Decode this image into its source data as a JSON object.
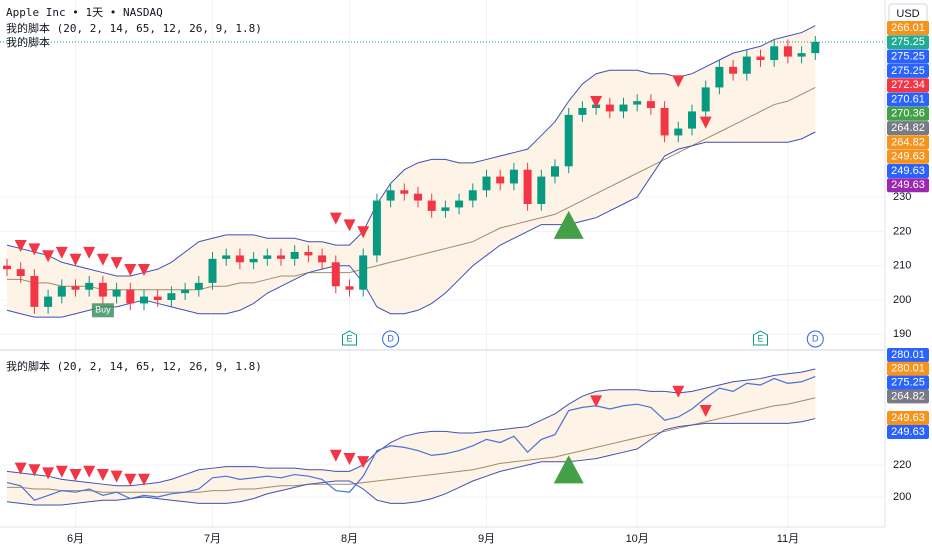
{
  "chart_data": [
    {
      "type": "candlestick",
      "title": "Apple Inc • 1天 • NASDAQ",
      "indicator": "我的脚本 (20, 2, 14, 65, 12, 26, 9, 1.8)",
      "indicator_short": "我的脚本",
      "currency": "USD",
      "categories": [
        null,
        null,
        null,
        null,
        null,
        "6月",
        null,
        null,
        null,
        null,
        null,
        null,
        null,
        null,
        null,
        "7月",
        null,
        null,
        null,
        null,
        null,
        null,
        null,
        null,
        null,
        "8月",
        null,
        null,
        null,
        null,
        null,
        null,
        null,
        null,
        null,
        "9月",
        null,
        null,
        null,
        null,
        null,
        null,
        null,
        null,
        null,
        null,
        "10月",
        null,
        null,
        null,
        null,
        null,
        null,
        null,
        null,
        null,
        null,
        "11月",
        null,
        null
      ],
      "open": [
        210,
        209,
        207,
        198,
        201,
        204,
        203,
        205,
        201,
        203,
        199,
        201,
        200,
        202,
        203,
        205,
        212,
        213,
        211,
        212,
        213,
        212,
        214,
        213,
        211,
        204,
        203,
        213,
        229,
        232,
        231,
        229,
        226,
        227,
        229,
        232,
        236,
        234,
        238,
        228,
        236,
        239,
        254,
        256,
        257,
        255,
        257,
        258,
        256,
        248,
        250,
        255,
        262,
        268,
        266,
        271,
        270,
        274,
        271,
        272
      ],
      "high": [
        212,
        211,
        209,
        203,
        206,
        206,
        207,
        207,
        205,
        205,
        203,
        203,
        204,
        205,
        207,
        214,
        215,
        215,
        214,
        215,
        215,
        216,
        216,
        215,
        213,
        206,
        215,
        231,
        234,
        234,
        233,
        231,
        229,
        231,
        234,
        238,
        238,
        240,
        240,
        238,
        241,
        256,
        258,
        259,
        259,
        259,
        260,
        260,
        258,
        252,
        257,
        264,
        270,
        270,
        273,
        273,
        276,
        276,
        274,
        277
      ],
      "low": [
        207,
        205,
        196,
        196,
        199,
        201,
        201,
        199,
        199,
        197,
        197,
        198,
        198,
        200,
        201,
        203,
        210,
        209,
        209,
        210,
        210,
        210,
        211,
        209,
        202,
        201,
        201,
        211,
        227,
        229,
        227,
        224,
        224,
        225,
        227,
        230,
        232,
        232,
        226,
        226,
        234,
        237,
        252,
        254,
        253,
        253,
        255,
        254,
        246,
        246,
        248,
        253,
        260,
        264,
        264,
        268,
        268,
        269,
        269,
        270
      ],
      "close": [
        209,
        207,
        198,
        201,
        204,
        203,
        205,
        201,
        203,
        199,
        201,
        200,
        202,
        203,
        205,
        212,
        213,
        211,
        212,
        213,
        212,
        214,
        213,
        211,
        204,
        203,
        213,
        229,
        232,
        231,
        229,
        226,
        227,
        229,
        232,
        236,
        234,
        238,
        228,
        236,
        239,
        254,
        256,
        257,
        255,
        257,
        258,
        256,
        248,
        250,
        255,
        262,
        268,
        266,
        271,
        270,
        274,
        271,
        272,
        275.25
      ],
      "upper": [
        216,
        215,
        214,
        213,
        211,
        210,
        209,
        208,
        207,
        207,
        208,
        209,
        211,
        214,
        217,
        218,
        219,
        219,
        219,
        218,
        218,
        218,
        217,
        217,
        216,
        216,
        220,
        228,
        234,
        238,
        240,
        241,
        241,
        240,
        240,
        241,
        242,
        243,
        244,
        248,
        252,
        258,
        263,
        266,
        267,
        267,
        267,
        266,
        266,
        265,
        266,
        268,
        270,
        272,
        273,
        274,
        276,
        277,
        278,
        280
      ],
      "middle": [
        206,
        206,
        205,
        205,
        204,
        204,
        204,
        203,
        203,
        203,
        203,
        203,
        203,
        203,
        203,
        204,
        204,
        205,
        205,
        206,
        207,
        207,
        208,
        208,
        208,
        208,
        209,
        210,
        211,
        212,
        213,
        214,
        215,
        216,
        217,
        219,
        221,
        222,
        223,
        224,
        225,
        227,
        229,
        231,
        233,
        235,
        237,
        239,
        241,
        243,
        245,
        247,
        249,
        251,
        253,
        255,
        257,
        258,
        260,
        262
      ],
      "lower": [
        197,
        196,
        195,
        195,
        195,
        196,
        197,
        198,
        198,
        199,
        200,
        199,
        198,
        197,
        196,
        196,
        196,
        197,
        199,
        202,
        204,
        206,
        208,
        209,
        210,
        210,
        205,
        198,
        196,
        196,
        197,
        199,
        202,
        206,
        210,
        213,
        216,
        218,
        220,
        222,
        222,
        222,
        223,
        224,
        226,
        228,
        230,
        236,
        242,
        244,
        245,
        246,
        246,
        246,
        246,
        246,
        246,
        246,
        247,
        249
      ],
      "up_color": "#089981",
      "down_color": "#f23645",
      "band_color": "#3f51b5",
      "band_fill": "#fdf3e6",
      "middle_color": "#a08c6c",
      "ylim": [
        186,
        287.5
      ],
      "yticks": [
        190,
        200,
        210,
        220,
        230
      ],
      "grid": true,
      "markers": [
        {
          "index": 1,
          "value": 214,
          "kind": "sell"
        },
        {
          "index": 2,
          "value": 213,
          "kind": "sell"
        },
        {
          "index": 3,
          "value": 211,
          "kind": "sell"
        },
        {
          "index": 4,
          "value": 212,
          "kind": "sell"
        },
        {
          "index": 5,
          "value": 210,
          "kind": "sell"
        },
        {
          "index": 6,
          "value": 212,
          "kind": "sell"
        },
        {
          "index": 7,
          "value": 210,
          "kind": "sell"
        },
        {
          "index": 8,
          "value": 209,
          "kind": "sell"
        },
        {
          "index": 9,
          "value": 207,
          "kind": "sell"
        },
        {
          "index": 10,
          "value": 207,
          "kind": "sell"
        },
        {
          "index": 24,
          "value": 222,
          "kind": "sell"
        },
        {
          "index": 25,
          "value": 220,
          "kind": "sell"
        },
        {
          "index": 26,
          "value": 218,
          "kind": "sell"
        },
        {
          "index": 43,
          "value": 256,
          "kind": "sell"
        },
        {
          "index": 49,
          "value": 262,
          "kind": "sell"
        },
        {
          "index": 51,
          "value": 250,
          "kind": "sell"
        },
        {
          "index": 41,
          "value": 226,
          "kind": "buy"
        }
      ],
      "tags": [
        {
          "text": "Buy",
          "index": 7,
          "value": 197
        }
      ],
      "events": [
        {
          "label": "E",
          "index": 25
        },
        {
          "label": "D",
          "index": 28
        },
        {
          "label": "E",
          "index": 55
        },
        {
          "label": "D",
          "index": 59
        }
      ],
      "price_labels": [
        {
          "value": 266.01,
          "color": "#f7931a"
        },
        {
          "value": 275.25,
          "color": "#22ab94"
        },
        {
          "value": 275.25,
          "color": "#2962ff"
        },
        {
          "value": 275.25,
          "color": "#2962ff"
        },
        {
          "value": 272.34,
          "color": "#f23645"
        },
        {
          "value": 270.61,
          "color": "#2962ff"
        },
        {
          "value": 270.36,
          "color": "#43a047"
        },
        {
          "value": 264.82,
          "color": "#787b86"
        },
        {
          "value": 264.82,
          "color": "#f7931a"
        },
        {
          "value": 249.63,
          "color": "#f7931a"
        },
        {
          "value": 249.63,
          "color": "#2962ff"
        },
        {
          "value": 249.63,
          "color": "#9c27b0"
        }
      ]
    },
    {
      "type": "line",
      "indicator": "我的脚本 (20, 2, 14, 65, 12, 26, 9, 1.8)",
      "line_color": "#4a72d8",
      "ylim": [
        181.25,
        290.6
      ],
      "yticks": [
        200,
        220
      ],
      "grid": true,
      "price_labels": [
        {
          "value": 280.01,
          "color": "#2962ff"
        },
        {
          "value": 280.01,
          "color": "#f7931a"
        },
        {
          "value": 275.25,
          "color": "#2962ff"
        },
        {
          "value": 264.82,
          "color": "#787b86"
        },
        {
          "value": 249.63,
          "color": "#f7931a"
        },
        {
          "value": 249.63,
          "color": "#2962ff"
        }
      ]
    }
  ]
}
